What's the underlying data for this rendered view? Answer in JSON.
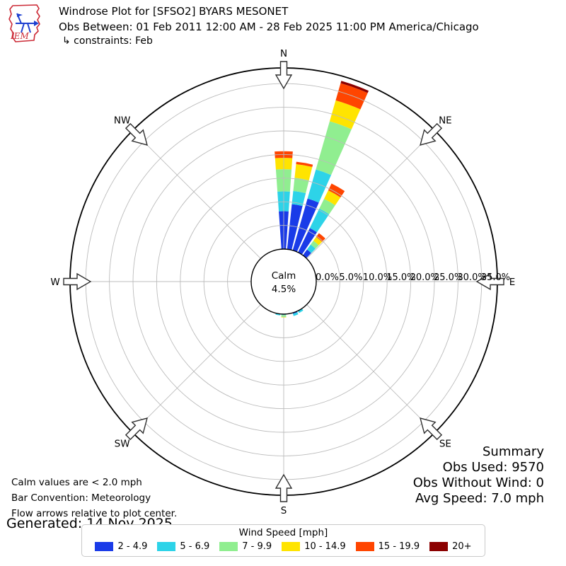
{
  "header": {
    "title": "Windrose Plot for [SFSO2] BYARS MESONET",
    "subtitle": "Obs Between: 01 Feb 2011 12:00 AM - 28 Feb 2025 11:00 PM America/Chicago",
    "constraints": "↳ constraints: Feb",
    "logo_text": "IEM"
  },
  "summary": {
    "title": "Summary",
    "obs_used": "Obs Used: 9570",
    "obs_without_wind": "Obs Without Wind: 0",
    "avg_speed": "Avg Speed: 7.0 mph"
  },
  "footnotes": {
    "calm_note": "Calm values are < 2.0 mph",
    "bar_convention": "Bar Convention: Meteorology",
    "flow_note": "Flow arrows relative to plot center.",
    "generated": "Generated: 14 Nov 2025"
  },
  "legend": {
    "title": "Wind Speed [mph]"
  },
  "chart_data": {
    "type": "windrose",
    "title": "Windrose Plot for [SFSO2] BYARS MESONET",
    "units": "mph",
    "nsectors": 36,
    "bar_width_deg": 8,
    "calm": {
      "label": "Calm",
      "value": "4.5%"
    },
    "speed_bins": [
      {
        "label": "2 - 4.9",
        "color": "#1a3be8"
      },
      {
        "label": "5 - 6.9",
        "color": "#2dd3e8"
      },
      {
        "label": "7 - 9.9",
        "color": "#90ee90"
      },
      {
        "label": "10 - 14.9",
        "color": "#ffe400"
      },
      {
        "label": "15 - 19.9",
        "color": "#ff4500"
      },
      {
        "label": "20+",
        "color": "#8b0000"
      }
    ],
    "bars": [
      {
        "dir_deg": 0,
        "values_pct": [
          8.0,
          4.2,
          4.7,
          2.4,
          1.4,
          0
        ]
      },
      {
        "dir_deg": 10,
        "values_pct": [
          9.6,
          2.8,
          2.8,
          2.9,
          0.5,
          0
        ]
      },
      {
        "dir_deg": 20,
        "values_pct": [
          11.4,
          6.4,
          10.6,
          4.6,
          3.8,
          0.5
        ]
      },
      {
        "dir_deg": 30,
        "values_pct": [
          5.7,
          4.6,
          2.3,
          2.0,
          1.6,
          0
        ]
      },
      {
        "dir_deg": 40,
        "values_pct": [
          1.5,
          1.3,
          1.0,
          1.0,
          1.0,
          0
        ]
      },
      {
        "dir_deg": 150,
        "values_pct": [
          0,
          0.5,
          0,
          0,
          0,
          0
        ]
      },
      {
        "dir_deg": 160,
        "values_pct": [
          0.2,
          0.5,
          0,
          0,
          0,
          0
        ]
      },
      {
        "dir_deg": 180,
        "values_pct": [
          0.1,
          0.1,
          0.4,
          0.1,
          0,
          0
        ]
      },
      {
        "dir_deg": 190,
        "values_pct": [
          0,
          0.3,
          0,
          0,
          0,
          0
        ]
      }
    ],
    "ring_step_pct": 5,
    "ring_labels": [
      "0.0%",
      "5.0%",
      "10.0%",
      "15.0%",
      "20.0%",
      "25.0%",
      "30.0%",
      "35.0%"
    ],
    "rmax_pct": 38.3,
    "compass_labels": [
      "N",
      "NE",
      "E",
      "SE",
      "S",
      "SW",
      "W",
      "NW"
    ],
    "grid": true,
    "legend_position": "bottom"
  }
}
